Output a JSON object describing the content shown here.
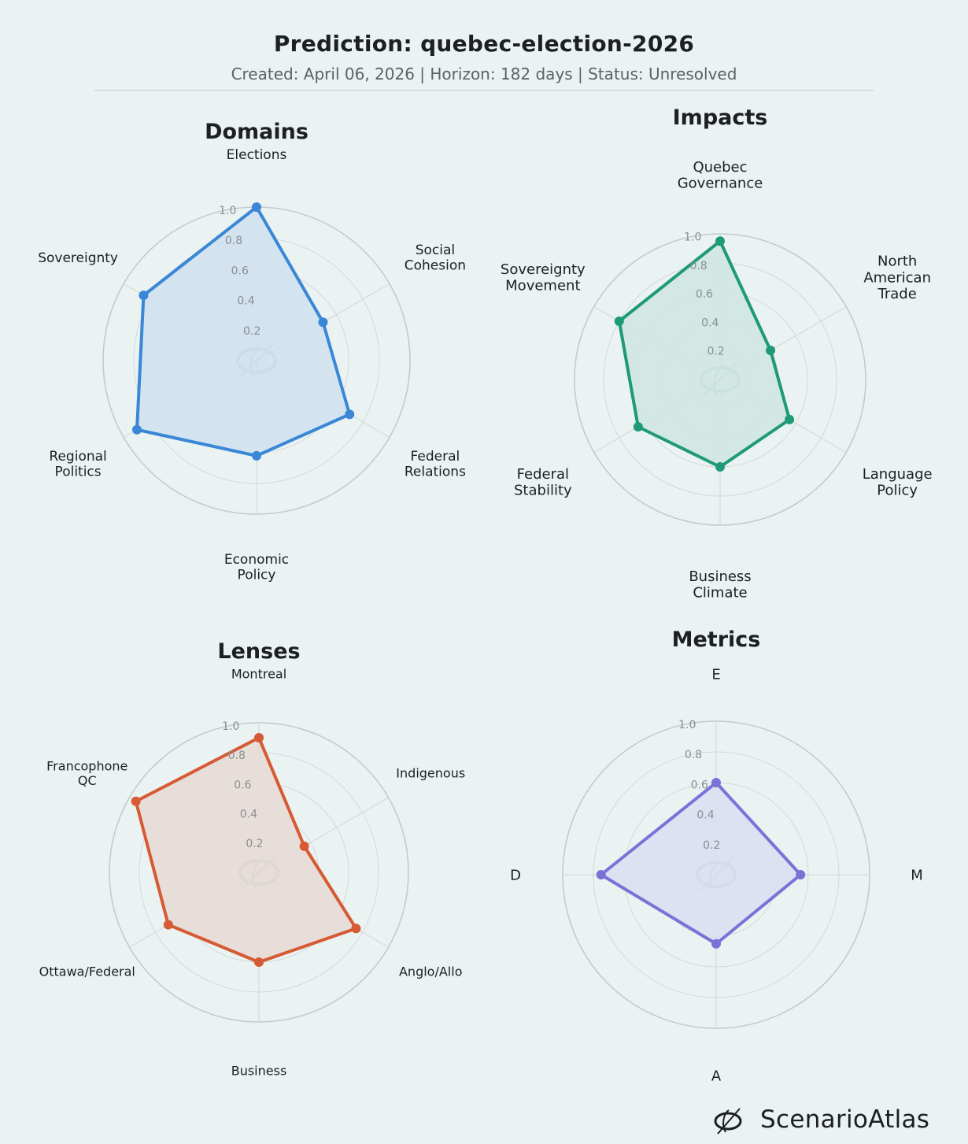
{
  "header": {
    "title": "Prediction: quebec-election-2026",
    "subtitle": "Created: April 06, 2026  |  Horizon: 182 days  |  Status: Unresolved"
  },
  "brand": {
    "name": "ScenarioAtlas",
    "logo_icon": "scenarioatlas-logo-icon"
  },
  "chart_data": [
    {
      "type": "radar",
      "title": "Domains",
      "color": "#3a87d6",
      "fill": "#cfe2f0",
      "rlim": [
        0,
        1.0
      ],
      "rticks": [
        "0.2",
        "0.4",
        "0.6",
        "0.8",
        "1.0"
      ],
      "categories": [
        [
          "Elections"
        ],
        [
          "Social",
          "Cohesion"
        ],
        [
          "Federal",
          "Relations"
        ],
        [
          "Economic",
          "Policy"
        ],
        [
          "Regional",
          "Politics"
        ],
        [
          "Sovereignty"
        ]
      ],
      "values": [
        1.0,
        0.5,
        0.7,
        0.62,
        0.9,
        0.85
      ]
    },
    {
      "type": "radar",
      "title": "Impacts",
      "color": "#1e9a78",
      "fill": "#cfe6e0",
      "rlim": [
        0,
        1.0
      ],
      "rticks": [
        "0.2",
        "0.4",
        "0.6",
        "0.8",
        "1.0"
      ],
      "categories": [
        [
          "Quebec",
          "Governance"
        ],
        [
          "North",
          "American",
          "Trade"
        ],
        [
          "Language",
          "Policy"
        ],
        [
          "Business",
          "Climate"
        ],
        [
          "Federal",
          "Stability"
        ],
        [
          "Sovereignty",
          "Movement"
        ]
      ],
      "values": [
        0.95,
        0.4,
        0.55,
        0.6,
        0.65,
        0.8
      ]
    },
    {
      "type": "radar",
      "title": "Lenses",
      "color": "#d65a33",
      "fill": "#e6dbd6",
      "rlim": [
        0,
        1.0
      ],
      "rticks": [
        "0.2",
        "0.4",
        "0.6",
        "0.8",
        "1.0"
      ],
      "categories": [
        [
          "Montreal"
        ],
        [
          "Indigenous"
        ],
        [
          "Anglo/Allo"
        ],
        [
          "Business"
        ],
        [
          "Ottawa/Federal"
        ],
        [
          "Francophone",
          "QC"
        ]
      ],
      "values": [
        0.9,
        0.35,
        0.75,
        0.6,
        0.7,
        0.95
      ]
    },
    {
      "type": "radar",
      "title": "Metrics",
      "color": "#7b72d8",
      "fill": "#d9dff1",
      "rlim": [
        0,
        1.0
      ],
      "rticks": [
        "0.2",
        "0.4",
        "0.6",
        "0.8",
        "1.0"
      ],
      "categories": [
        [
          "E"
        ],
        [
          "M"
        ],
        [
          "A"
        ],
        [
          "D"
        ]
      ],
      "values": [
        0.6,
        0.55,
        0.45,
        0.75
      ]
    }
  ]
}
